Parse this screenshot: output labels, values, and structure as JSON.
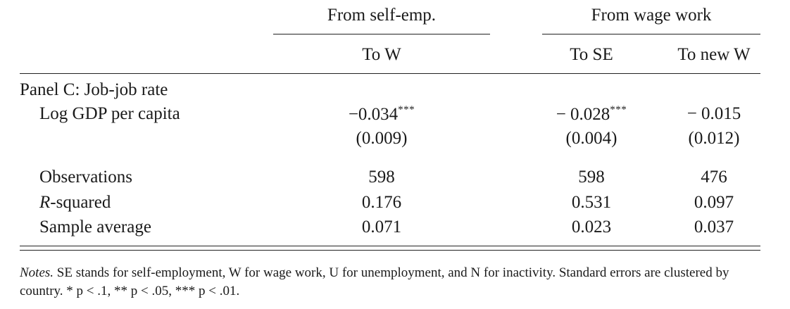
{
  "table": {
    "group_headers": {
      "self_emp": "From self-emp.",
      "wage_work": "From wage work"
    },
    "col_headers": {
      "to_w": "To W",
      "to_se": "To SE",
      "to_new_w": "To new W"
    },
    "panel_label": "Panel C: Job-job rate",
    "rows": {
      "gdp": {
        "label": "Log GDP per capita",
        "to_w": {
          "coef": "−0.034",
          "stars": "***",
          "se": "(0.009)"
        },
        "to_se": {
          "coef": "− 0.028",
          "stars": "***",
          "se": "(0.004)"
        },
        "to_new_w": {
          "coef": "− 0.015",
          "stars": "",
          "se": "(0.012)"
        }
      },
      "observations": {
        "label": "Observations",
        "to_w": "598",
        "to_se": "598",
        "to_new_w": "476"
      },
      "rsquared": {
        "label_italic": "R",
        "label_rest": "-squared",
        "to_w": "0.176",
        "to_se": "0.531",
        "to_new_w": "0.097"
      },
      "sample_avg": {
        "label": "Sample average",
        "to_w": "0.071",
        "to_se": "0.023",
        "to_new_w": "0.037"
      }
    }
  },
  "notes": {
    "lead": "Notes.",
    "text": " SE stands for self-employment, W for wage work, U for unemployment, and N for inactivity. Standard errors are clustered by country. * p < .1, ** p < .05, *** p < .01."
  }
}
